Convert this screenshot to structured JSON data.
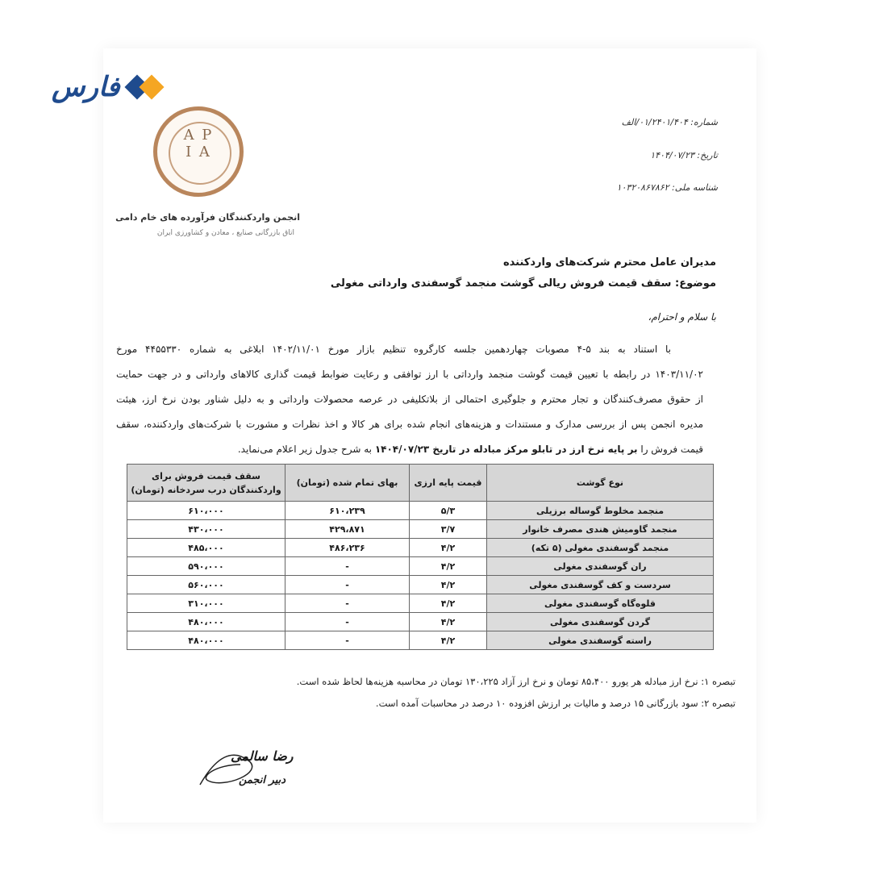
{
  "brand": {
    "name": "فارس",
    "colors": {
      "primary": "#1f4b8e",
      "accent": "#f5a623"
    }
  },
  "letterhead": {
    "seal_letters": "APIA",
    "seal_color": "#b9865c",
    "org_name": "انجمن واردکنندگان فرآورده های خام دامی",
    "org_sub": "اتاق بازرگانی صنایع ، معادن و کشاورزی ایران"
  },
  "meta": {
    "number": "شماره: ۰۱/۲۴۰۱/۴۰۴/الف",
    "date": "تاریخ: ۱۴۰۴/۰۷/۲۳",
    "national_id": "شناسه ملی: ۱۰۳۲۰۸۶۷۸۶۲"
  },
  "addressee": "مدیران عامل محترم شرکت‌های واردکننده",
  "subject": "موضوع: سقف قیمت فروش ریالی گوشت منجمد گوسفندی وارداتی مغولی",
  "greeting": "با سلام و احترام،",
  "body": {
    "lines": [
      "با استناد به بند ۵-۴ مصوبات چهاردهمین جلسه کارگروه تنظیم بازار مورخ ۱۴۰۲/۱۱/۰۱ ابلاغی به شماره ۴۴۵۵۳۳۰ مورخ",
      "۱۴۰۳/۱۱/۰۲ در رابطه با تعیین قیمت گوشت منجمد وارداتی با ارز توافقی و رعایت ضوابط قیمت گذاری کالاهای وارداتی و در جهت حمایت",
      "از حقوق مصرف‌کنندگان و تجار محترم و جلوگیری احتمالی از بلاتکلیفی در عرصه محصولات وارداتی و به دلیل شناور بودن نرخ ارز، هیئت",
      "مدیره انجمن پس از بررسی مدارک و مستندات و هزینه‌های انجام شده برای هر کالا و اخذ نظرات و مشورت با شرکت‌های واردکننده، سقف"
    ],
    "last_line_pre": "قیمت فروش را ",
    "last_line_bold": "بر پایه نرخ ارز در تابلو مرکز مبادله در تاریخ ۱۴۰۴/۰۷/۲۳",
    "last_line_post": " به شرح جدول زیر اعلام می‌نماید."
  },
  "table": {
    "headers": [
      "نوع گوشت",
      "قیمت پایه ارزی",
      "بهای تمام شده (تومان)",
      "سقف قیمت فروش برای واردکنندگان درب سردخانه (تومان)"
    ],
    "rows": [
      [
        "منجمد مخلوط گوساله برزیلی",
        "۵/۳",
        "۶۱۰،۲۳۹",
        "۶۱۰،۰۰۰"
      ],
      [
        "منجمد گاومیش هندی مصرف خانوار",
        "۳/۷",
        "۴۲۹،۸۷۱",
        "۴۳۰،۰۰۰"
      ],
      [
        "منجمد گوسفندی مغولی (۵ تکه)",
        "۴/۲",
        "۴۸۶،۲۳۶",
        "۴۸۵،۰۰۰"
      ],
      [
        "ران گوسفندی مغولی",
        "۴/۲",
        "-",
        "۵۹۰،۰۰۰"
      ],
      [
        "سردست و کف گوسفندی مغولی",
        "۴/۲",
        "-",
        "۵۶۰،۰۰۰"
      ],
      [
        "قلوه‌گاه گوسفندی مغولی",
        "۴/۲",
        "-",
        "۳۱۰،۰۰۰"
      ],
      [
        "گردن گوسفندی مغولی",
        "۴/۲",
        "-",
        "۴۸۰،۰۰۰"
      ],
      [
        "راسته گوسفندی مغولی",
        "۴/۲",
        "-",
        "۴۸۰،۰۰۰"
      ]
    ]
  },
  "notes": [
    "تبصره ۱: نرخ ارز مبادله هر یورو ۸۵،۴۰۰ تومان و نرخ ارز آزاد ۱۳۰،۲۲۵ تومان در محاسبه هزینه‌ها لحاظ شده است.",
    "تبصره ۲: سود بازرگانی ۱۵ درصد و مالیات بر ارزش افزوده ۱۰ درصد در محاسبات آمده است."
  ],
  "signature": {
    "name": "رضا سالمی",
    "title": "دبیر انجمن"
  }
}
